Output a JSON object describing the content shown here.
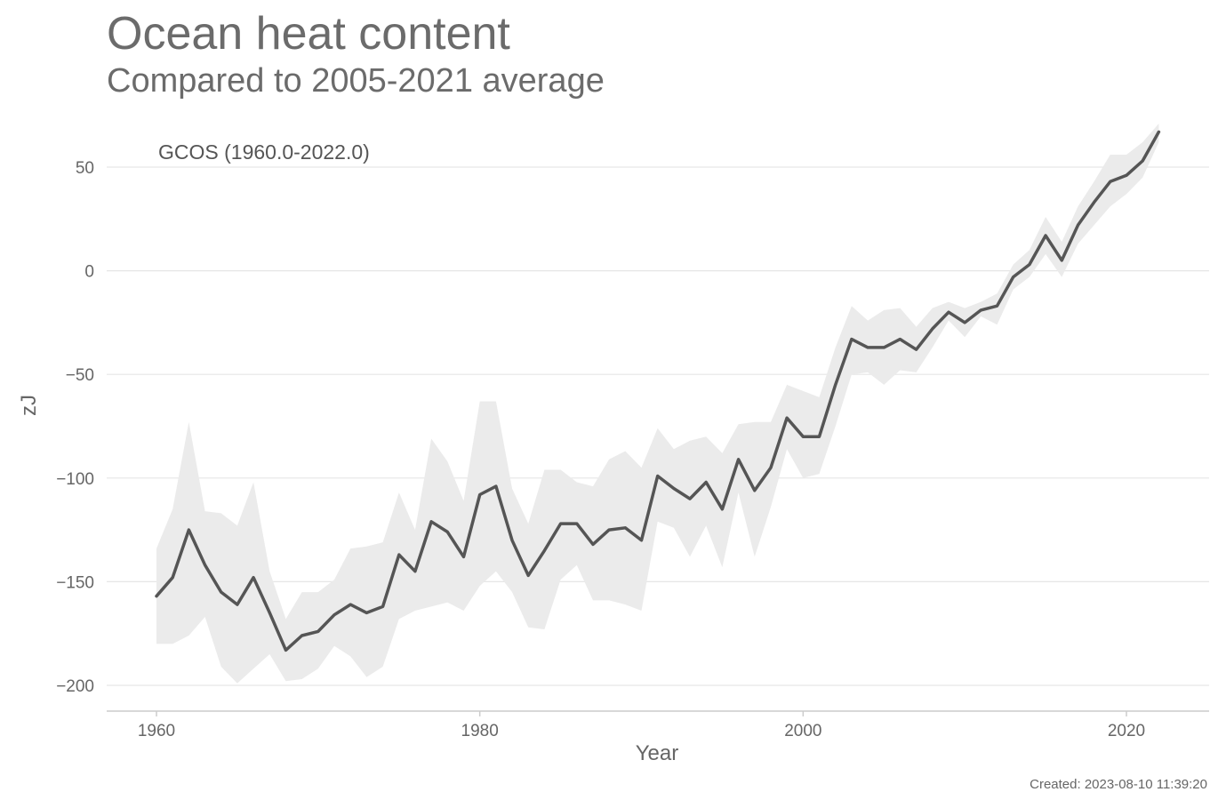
{
  "chart_data": {
    "type": "line",
    "title": "Ocean heat content",
    "subtitle": "Compared to 2005-2021 average",
    "xlabel": "Year",
    "ylabel": "zJ",
    "xlim": [
      1957,
      2025
    ],
    "ylim": [
      -212,
      72
    ],
    "x_ticks": [
      1960,
      1980,
      2000,
      2020
    ],
    "x_tick_labels": [
      "1960",
      "1980",
      "2000",
      "2020"
    ],
    "y_ticks": [
      50,
      0,
      -50,
      -100,
      -150,
      -200
    ],
    "y_tick_labels": [
      "50",
      "0",
      "−50",
      "−100",
      "−150",
      "−200"
    ],
    "grid": "horizontal",
    "annotation": "GCOS (1960.0-2022.0)",
    "created": "Created: 2023-08-10 11:39:20",
    "colors": {
      "line": "#555555",
      "band": "#ebebeb",
      "grid": "#e6e6e6",
      "axis": "#cccccc"
    },
    "series": [
      {
        "x": [
          1960,
          1961,
          1962,
          1963,
          1964,
          1965,
          1966,
          1967,
          1968,
          1969,
          1970,
          1971,
          1972,
          1973,
          1974,
          1975,
          1976,
          1977,
          1978,
          1979,
          1980,
          1981,
          1982,
          1983,
          1984,
          1985,
          1986,
          1987,
          1988,
          1989,
          1990,
          1991,
          1992,
          1993,
          1994,
          1995,
          1996,
          1997,
          1998,
          1999,
          2000,
          2001,
          2002,
          2003,
          2004,
          2005,
          2006,
          2007,
          2008,
          2009,
          2010,
          2011,
          2012,
          2013,
          2014,
          2015,
          2016,
          2017,
          2018,
          2019,
          2020,
          2021,
          2022
        ],
        "values": [
          -157,
          -148,
          -125,
          -142,
          -155,
          -161,
          -148,
          -165,
          -183,
          -176,
          -174,
          -166,
          -161,
          -165,
          -162,
          -137,
          -145,
          -121,
          -126,
          -138,
          -108,
          -104,
          -130,
          -147,
          -135,
          -122,
          -122,
          -132,
          -125,
          -124,
          -130,
          -99,
          -105,
          -110,
          -102,
          -115,
          -91,
          -106,
          -95,
          -71,
          -80,
          -80,
          -55,
          -33,
          -37,
          -37,
          -33,
          -38,
          -28,
          -20,
          -25,
          -19,
          -17,
          -3,
          3,
          17,
          5,
          22,
          33,
          43,
          46,
          53,
          67
        ],
        "lower": [
          -180,
          -180,
          -176,
          -167,
          -191,
          -199,
          -192,
          -185,
          -198,
          -197,
          -192,
          -181,
          -186,
          -196,
          -191,
          -168,
          -164,
          -162,
          -160,
          -164,
          -152,
          -145,
          -155,
          -172,
          -173,
          -149,
          -142,
          -159,
          -159,
          -161,
          -164,
          -121,
          -124,
          -138,
          -123,
          -143,
          -107,
          -138,
          -114,
          -86,
          -100,
          -98,
          -75,
          -50,
          -49,
          -55,
          -48,
          -49,
          -37,
          -24,
          -32,
          -22,
          -26,
          -9,
          -3,
          8,
          -3,
          13,
          22,
          31,
          37,
          45,
          62
        ],
        "upper": [
          -134,
          -115,
          -73,
          -116,
          -117,
          -123,
          -102,
          -145,
          -168,
          -155,
          -155,
          -149,
          -134,
          -133,
          -131,
          -107,
          -125,
          -81,
          -92,
          -111,
          -63,
          -63,
          -105,
          -122,
          -96,
          -96,
          -102,
          -104,
          -91,
          -87,
          -95,
          -76,
          -86,
          -82,
          -80,
          -88,
          -74,
          -73,
          -73,
          -55,
          -58,
          -61,
          -37,
          -17,
          -24,
          -19,
          -18,
          -27,
          -18,
          -15,
          -18,
          -15,
          -11,
          3,
          10,
          26,
          14,
          31,
          43,
          56,
          56,
          62,
          71
        ]
      }
    ]
  }
}
